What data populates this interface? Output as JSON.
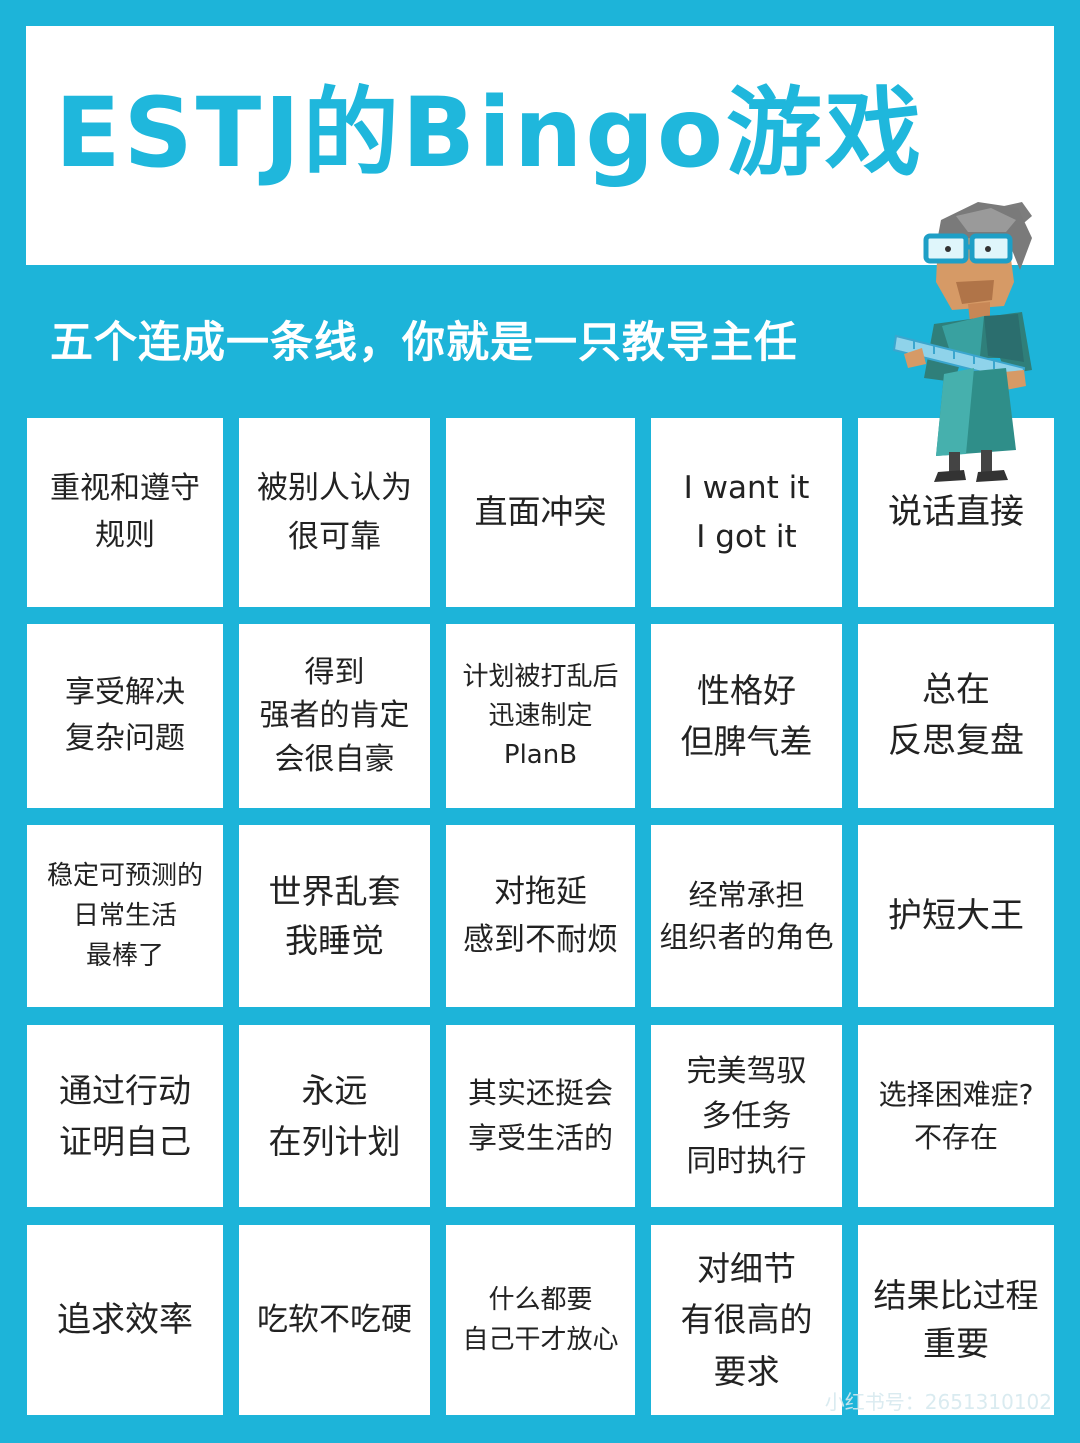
{
  "title": "ESTJ的Bingo游戏",
  "subtitle": "五个连成一条线，你就是一只教导主任",
  "grid": [
    "重视和遵守\n规则",
    "被别人认为\n很可靠",
    "直面冲突",
    "I want it\nI got it",
    "说话直接",
    "享受解决\n复杂问题",
    "得到\n强者的肯定\n会很自豪",
    "计划被打乱后\n迅速制定\nPlanB",
    "性格好\n但脾气差",
    "总在\n反思复盘",
    "稳定可预测的\n日常生活\n最棒了",
    "世界乱套\n我睡觉",
    "对拖延\n感到不耐烦",
    "经常承担\n组织者的角色",
    "护短大王",
    "通过行动\n证明自己",
    "永远\n在列计划",
    "其实还挺会\n享受生活的",
    "完美驾驭\n多任务\n同时执行",
    "选择困难症?\n不存在",
    "追求效率",
    "吃软不吃硬",
    "什么都要\n自己干才放心",
    "对细节\n有很高的\n要求",
    "结果比过程\n重要"
  ],
  "watermark": "小红书号：2651310102",
  "colors": {
    "background": "#1db4d9",
    "title": "#1fb7dc",
    "cell": "#ffffff",
    "text": "#222222"
  },
  "icons": {
    "character": "teacher-with-ruler-icon"
  }
}
